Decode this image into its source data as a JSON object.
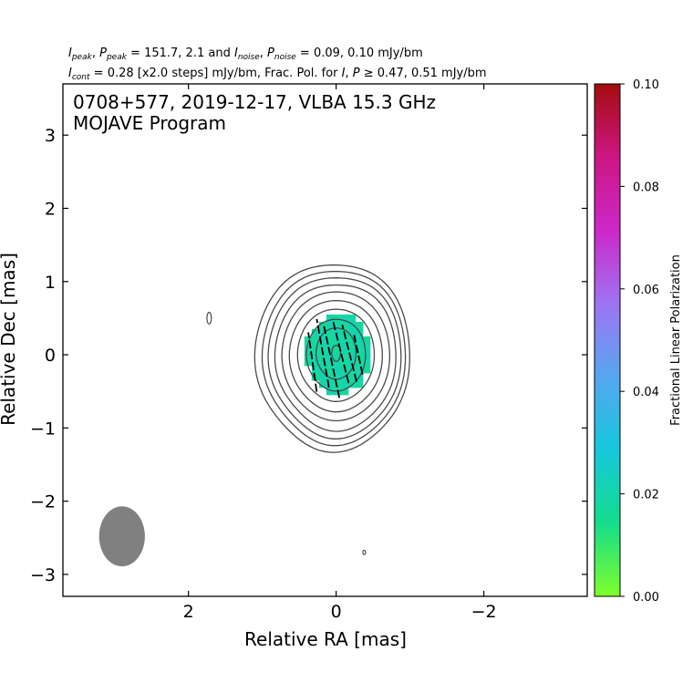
{
  "header": {
    "line1": {
      "peak_label": "I",
      "peak_sub": "peak",
      "ppeak_label": "P",
      "ppeak_sub": "peak",
      "peak_values": " = 151.7, 2.1 and ",
      "noise_label": "I",
      "noise_sub": "noise",
      "pnoise_label": "P",
      "pnoise_sub": "noise",
      "noise_values": " = 0.09, 0.10 mJy/bm"
    },
    "line2": {
      "cont_label": "I",
      "cont_sub": "cont",
      "cont_values": " = 0.28 [x2.0 steps] mJy/bm, Frac. Pol. for ",
      "i_label": "I",
      "p_label": "P",
      "threshold_values": " ≥ 0.47, 0.51 mJy/bm"
    }
  },
  "chart_data": {
    "type": "heatmap",
    "title_line1": "0708+577, 2019-12-17, VLBA 15.3 GHz",
    "title_line2": "MOJAVE Program",
    "xlabel": "Relative RA [mas]",
    "ylabel": "Relative Dec [mas]",
    "xlim": [
      3.7,
      -3.4
    ],
    "ylim": [
      -3.3,
      3.7
    ],
    "x_inverted": true,
    "x_ticks": [
      2,
      0,
      -2
    ],
    "x_tick_labels": [
      "2",
      "0",
      "−2"
    ],
    "y_ticks": [
      3,
      2,
      1,
      0,
      -1,
      -2,
      -3
    ],
    "y_tick_labels": [
      "3",
      "2",
      "1",
      "0",
      "−1",
      "−2",
      "−3"
    ],
    "colorbar": {
      "label": "Fractional Linear Polarization",
      "range": [
        0.0,
        0.1
      ],
      "ticks": [
        "0.00",
        "0.02",
        "0.04",
        "0.06",
        "0.08",
        "0.10"
      ],
      "colormap": [
        "#7fff2a",
        "#14dd8c",
        "#16c8dc",
        "#56a6f0",
        "#9e74f2",
        "#cc28c8",
        "#cc1684",
        "#a30d0d"
      ]
    },
    "contour_color": "#4a4a4a",
    "contour_levels_mjy": [
      0.28,
      0.56,
      1.12,
      2.24,
      4.48,
      8.96,
      17.92,
      35.84,
      71.68,
      143.36
    ],
    "contours": [
      {
        "cx": 0.04,
        "cy": -0.02,
        "rx": 1.05,
        "ry": 1.28
      },
      {
        "cx": 0.02,
        "cy": -0.02,
        "rx": 0.97,
        "ry": 1.19
      },
      {
        "cx": 0.01,
        "cy": -0.02,
        "rx": 0.9,
        "ry": 1.1
      },
      {
        "cx": 0.0,
        "cy": -0.02,
        "rx": 0.82,
        "ry": 1.0
      },
      {
        "cx": 0.0,
        "cy": -0.01,
        "rx": 0.73,
        "ry": 0.88
      },
      {
        "cx": 0.0,
        "cy": -0.01,
        "rx": 0.63,
        "ry": 0.76
      },
      {
        "cx": 0.0,
        "cy": 0.0,
        "rx": 0.52,
        "ry": 0.63
      },
      {
        "cx": 0.0,
        "cy": 0.0,
        "rx": 0.4,
        "ry": 0.49
      },
      {
        "cx": 0.0,
        "cy": 0.02,
        "rx": 0.27,
        "ry": 0.35
      },
      {
        "cx": 0.0,
        "cy": 0.02,
        "rx": 0.06,
        "ry": 0.11
      }
    ],
    "noise_islands": [
      {
        "cx": 1.72,
        "cy": 0.5,
        "rx": 0.03,
        "ry": 0.08
      },
      {
        "cx": -0.38,
        "cy": -2.7,
        "rx": 0.015,
        "ry": 0.03
      }
    ],
    "fracpol_region": {
      "cx": -0.02,
      "cy": 0.02,
      "rx": 0.45,
      "ry": 0.53,
      "value": 0.019
    },
    "evpa_vectors": [
      {
        "x": 0.32,
        "y": -0.1,
        "len": 0.82,
        "angle_deg": 8
      },
      {
        "x": 0.18,
        "y": 0.02,
        "len": 0.95,
        "angle_deg": 10
      },
      {
        "x": 0.06,
        "y": -0.1,
        "len": 1.0,
        "angle_deg": 12
      },
      {
        "x": -0.06,
        "y": 0.05,
        "len": 0.9,
        "angle_deg": 14
      },
      {
        "x": -0.18,
        "y": 0.02,
        "len": 0.8,
        "angle_deg": 14
      },
      {
        "x": -0.3,
        "y": 0.0,
        "len": 0.55,
        "angle_deg": 12
      }
    ],
    "beam": {
      "cx": 2.9,
      "cy": -2.48,
      "major": 0.82,
      "minor": 0.62,
      "pa_deg": 0,
      "color": "#808080"
    }
  }
}
